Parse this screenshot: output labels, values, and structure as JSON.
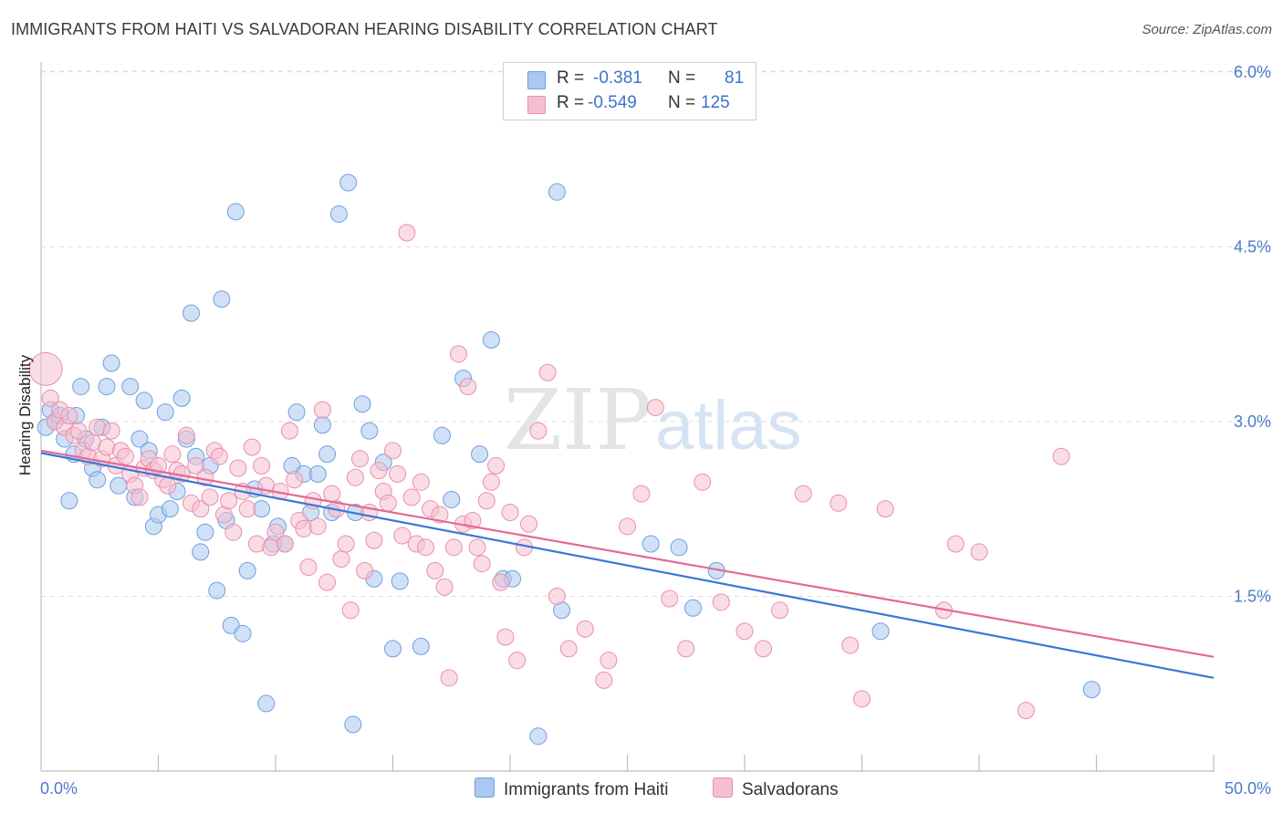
{
  "header": {
    "title": "IMMIGRANTS FROM HAITI VS SALVADORAN HEARING DISABILITY CORRELATION CHART",
    "source": "Source: ZipAtlas.com"
  },
  "legend_top": {
    "rows": [
      {
        "r_label": "R =",
        "r_value": "-0.381",
        "n_label": "N =",
        "n_value": "81"
      },
      {
        "r_label": "R =",
        "r_value": "-0.549",
        "n_label": "N =",
        "n_value": "125"
      }
    ]
  },
  "legend_bottom": {
    "items": [
      {
        "label": "Immigrants from Haiti"
      },
      {
        "label": "Salvadorans"
      }
    ]
  },
  "colors": {
    "haiti_fill": "#aac8f0",
    "haiti_stroke": "#6f9fdd",
    "haiti_line": "#3a78d4",
    "salv_fill": "#f6bfd0",
    "salv_stroke": "#e98fab",
    "salv_line": "#e26a93",
    "tick_text": "#4a7cc7",
    "grid": "#dddddd"
  },
  "chart_data": {
    "type": "scatter",
    "title": "IMMIGRANTS FROM HAITI VS SALVADORAN HEARING DISABILITY CORRELATION CHART",
    "xlabel": "",
    "ylabel": "Hearing Disability",
    "xlim": [
      0,
      50
    ],
    "ylim": [
      0,
      6.2
    ],
    "x_tick_labels": [
      "0.0%",
      "50.0%"
    ],
    "y_ticks": [
      1.5,
      3.0,
      4.5,
      6.0
    ],
    "y_tick_labels": [
      "1.5%",
      "3.0%",
      "4.5%",
      "6.0%"
    ],
    "grid": true,
    "legend_position": "top-center",
    "series": [
      {
        "name": "Immigrants from Haiti",
        "r": -0.381,
        "n": 81,
        "trend": [
          [
            0,
            2.73
          ],
          [
            50,
            0.8
          ]
        ],
        "points": [
          [
            0.2,
            2.95
          ],
          [
            0.4,
            3.1
          ],
          [
            0.6,
            3.0
          ],
          [
            0.8,
            3.05
          ],
          [
            1.0,
            2.85
          ],
          [
            1.2,
            2.32
          ],
          [
            1.4,
            2.72
          ],
          [
            1.5,
            3.05
          ],
          [
            1.7,
            3.3
          ],
          [
            1.9,
            2.85
          ],
          [
            2.2,
            2.6
          ],
          [
            2.4,
            2.5
          ],
          [
            2.6,
            2.95
          ],
          [
            2.8,
            3.3
          ],
          [
            3.0,
            3.5
          ],
          [
            3.3,
            2.45
          ],
          [
            3.8,
            3.3
          ],
          [
            4.0,
            2.35
          ],
          [
            4.2,
            2.85
          ],
          [
            4.4,
            3.18
          ],
          [
            4.6,
            2.75
          ],
          [
            4.8,
            2.1
          ],
          [
            5.0,
            2.2
          ],
          [
            5.3,
            3.08
          ],
          [
            5.5,
            2.25
          ],
          [
            5.8,
            2.4
          ],
          [
            6.0,
            3.2
          ],
          [
            6.2,
            2.85
          ],
          [
            6.4,
            3.93
          ],
          [
            6.6,
            2.7
          ],
          [
            6.8,
            1.88
          ],
          [
            7.0,
            2.05
          ],
          [
            7.2,
            2.62
          ],
          [
            7.5,
            1.55
          ],
          [
            7.7,
            4.05
          ],
          [
            7.9,
            2.15
          ],
          [
            8.1,
            1.25
          ],
          [
            8.3,
            4.8
          ],
          [
            8.6,
            1.18
          ],
          [
            8.8,
            1.72
          ],
          [
            9.1,
            2.42
          ],
          [
            9.4,
            2.25
          ],
          [
            9.6,
            0.58
          ],
          [
            9.9,
            1.95
          ],
          [
            10.1,
            2.1
          ],
          [
            10.4,
            1.95
          ],
          [
            10.7,
            2.62
          ],
          [
            10.9,
            3.08
          ],
          [
            11.2,
            2.55
          ],
          [
            11.5,
            2.22
          ],
          [
            11.8,
            2.55
          ],
          [
            12.0,
            2.97
          ],
          [
            12.2,
            2.72
          ],
          [
            12.4,
            2.22
          ],
          [
            12.7,
            4.78
          ],
          [
            13.1,
            5.05
          ],
          [
            13.4,
            2.22
          ],
          [
            13.7,
            3.15
          ],
          [
            13.3,
            0.4
          ],
          [
            14.0,
            2.92
          ],
          [
            14.2,
            1.65
          ],
          [
            14.6,
            2.65
          ],
          [
            15.0,
            1.05
          ],
          [
            15.3,
            1.63
          ],
          [
            16.2,
            1.07
          ],
          [
            17.1,
            2.88
          ],
          [
            17.5,
            2.33
          ],
          [
            18.0,
            3.37
          ],
          [
            18.7,
            2.72
          ],
          [
            19.2,
            3.7
          ],
          [
            19.7,
            1.65
          ],
          [
            20.1,
            1.65
          ],
          [
            22.0,
            4.97
          ],
          [
            21.2,
            0.3
          ],
          [
            22.2,
            1.38
          ],
          [
            26.0,
            1.95
          ],
          [
            27.2,
            1.92
          ],
          [
            27.8,
            1.4
          ],
          [
            28.8,
            1.72
          ],
          [
            35.8,
            1.2
          ],
          [
            44.8,
            0.7
          ]
        ]
      },
      {
        "name": "Salvadorans",
        "r": -0.549,
        "n": 125,
        "trend": [
          [
            0,
            2.75
          ],
          [
            50,
            0.98
          ]
        ],
        "points": [
          [
            0.2,
            3.45
          ],
          [
            0.4,
            3.2
          ],
          [
            0.6,
            3.0
          ],
          [
            0.8,
            3.1
          ],
          [
            1.0,
            2.95
          ],
          [
            1.2,
            3.05
          ],
          [
            1.4,
            2.88
          ],
          [
            1.6,
            2.92
          ],
          [
            1.8,
            2.75
          ],
          [
            2.0,
            2.7
          ],
          [
            2.2,
            2.82
          ],
          [
            2.4,
            2.95
          ],
          [
            2.6,
            2.68
          ],
          [
            2.8,
            2.78
          ],
          [
            3.0,
            2.92
          ],
          [
            3.2,
            2.62
          ],
          [
            3.4,
            2.75
          ],
          [
            3.6,
            2.7
          ],
          [
            3.8,
            2.55
          ],
          [
            4.0,
            2.45
          ],
          [
            4.2,
            2.35
          ],
          [
            4.4,
            2.6
          ],
          [
            4.6,
            2.68
          ],
          [
            4.8,
            2.58
          ],
          [
            5.0,
            2.62
          ],
          [
            5.2,
            2.5
          ],
          [
            5.4,
            2.45
          ],
          [
            5.6,
            2.72
          ],
          [
            5.8,
            2.58
          ],
          [
            6.0,
            2.55
          ],
          [
            6.2,
            2.88
          ],
          [
            6.4,
            2.3
          ],
          [
            6.6,
            2.62
          ],
          [
            6.8,
            2.25
          ],
          [
            7.0,
            2.52
          ],
          [
            7.2,
            2.35
          ],
          [
            7.4,
            2.75
          ],
          [
            7.6,
            2.7
          ],
          [
            7.8,
            2.2
          ],
          [
            8.0,
            2.32
          ],
          [
            8.2,
            2.05
          ],
          [
            8.4,
            2.6
          ],
          [
            8.6,
            2.4
          ],
          [
            8.8,
            2.25
          ],
          [
            9.0,
            2.78
          ],
          [
            9.2,
            1.95
          ],
          [
            9.4,
            2.62
          ],
          [
            9.6,
            2.45
          ],
          [
            9.8,
            1.92
          ],
          [
            10.0,
            2.05
          ],
          [
            10.2,
            2.4
          ],
          [
            10.4,
            1.95
          ],
          [
            10.6,
            2.92
          ],
          [
            10.8,
            2.5
          ],
          [
            11.0,
            2.15
          ],
          [
            11.2,
            2.08
          ],
          [
            11.4,
            1.75
          ],
          [
            11.6,
            2.32
          ],
          [
            11.8,
            2.1
          ],
          [
            12.0,
            3.1
          ],
          [
            12.2,
            1.62
          ],
          [
            12.4,
            2.38
          ],
          [
            12.6,
            2.25
          ],
          [
            12.8,
            1.82
          ],
          [
            13.0,
            1.95
          ],
          [
            13.2,
            1.38
          ],
          [
            13.4,
            2.52
          ],
          [
            13.6,
            2.68
          ],
          [
            13.8,
            1.72
          ],
          [
            14.0,
            2.22
          ],
          [
            14.2,
            1.98
          ],
          [
            14.4,
            2.58
          ],
          [
            14.6,
            2.4
          ],
          [
            14.8,
            2.3
          ],
          [
            15.0,
            2.75
          ],
          [
            15.2,
            2.55
          ],
          [
            15.4,
            2.02
          ],
          [
            15.6,
            4.62
          ],
          [
            15.8,
            2.35
          ],
          [
            16.0,
            1.95
          ],
          [
            16.2,
            2.48
          ],
          [
            16.4,
            1.92
          ],
          [
            16.6,
            2.25
          ],
          [
            16.8,
            1.72
          ],
          [
            17.0,
            2.2
          ],
          [
            17.2,
            1.58
          ],
          [
            17.4,
            0.8
          ],
          [
            17.6,
            1.92
          ],
          [
            17.8,
            3.58
          ],
          [
            18.0,
            2.12
          ],
          [
            18.2,
            3.3
          ],
          [
            18.4,
            2.15
          ],
          [
            18.6,
            1.92
          ],
          [
            18.8,
            1.78
          ],
          [
            19.0,
            2.32
          ],
          [
            19.2,
            2.48
          ],
          [
            19.4,
            2.62
          ],
          [
            19.6,
            1.62
          ],
          [
            19.8,
            1.15
          ],
          [
            20.0,
            2.22
          ],
          [
            20.3,
            0.95
          ],
          [
            20.6,
            1.92
          ],
          [
            20.8,
            2.12
          ],
          [
            21.2,
            2.92
          ],
          [
            21.6,
            3.42
          ],
          [
            22.0,
            1.5
          ],
          [
            22.5,
            1.05
          ],
          [
            23.2,
            1.22
          ],
          [
            24.0,
            0.78
          ],
          [
            25.0,
            2.1
          ],
          [
            25.6,
            2.38
          ],
          [
            26.2,
            3.12
          ],
          [
            26.8,
            1.48
          ],
          [
            27.5,
            1.05
          ],
          [
            28.2,
            2.48
          ],
          [
            29.0,
            1.45
          ],
          [
            30.0,
            1.2
          ],
          [
            30.8,
            1.05
          ],
          [
            31.5,
            1.38
          ],
          [
            32.5,
            2.38
          ],
          [
            34.0,
            2.3
          ],
          [
            35.0,
            0.62
          ],
          [
            36.0,
            2.25
          ],
          [
            38.5,
            1.38
          ],
          [
            39.0,
            1.95
          ],
          [
            40.0,
            1.88
          ],
          [
            42.0,
            0.52
          ],
          [
            43.5,
            2.7
          ],
          [
            24.2,
            0.95
          ],
          [
            34.5,
            1.08
          ]
        ]
      }
    ]
  },
  "watermark": {
    "zip": "ZIP",
    "atlas": "atlas"
  }
}
